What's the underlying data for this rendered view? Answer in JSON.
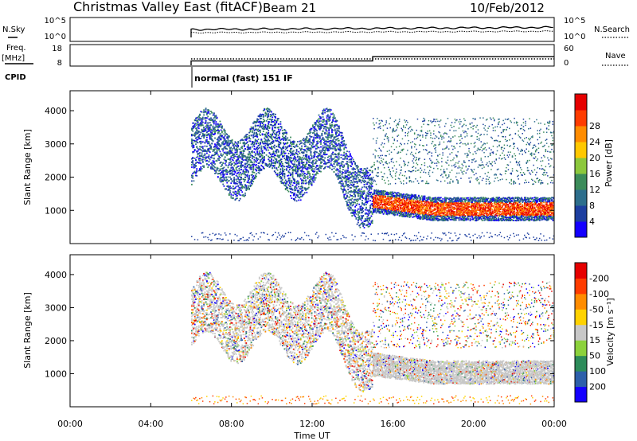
{
  "header": {
    "station": "Christmas Valley East (fitACF)",
    "beam": "Beam 21",
    "date": "10/Feb/2012"
  },
  "strip": {
    "nsky_label": "N.Sky",
    "nsearch_label": "N.Search",
    "nsky_ticks": [
      "10^5",
      "10^0"
    ],
    "nsearch_ticks": [
      "10^5",
      "10^0"
    ],
    "freq_label": "Freq.",
    "freq_unit": "[MHz]",
    "freq_ticks": [
      "18",
      "8"
    ],
    "nave_label": "Nave",
    "nave_ticks": [
      "60",
      "0"
    ],
    "cpid_label": "CPID",
    "cpid_text": "normal (fast) 151 IF",
    "freq_step_time": 15.0,
    "freq_before": 11,
    "freq_after": 14,
    "data_start": 6.0
  },
  "chart_data": [
    {
      "type": "heatmap",
      "name": "power",
      "ylabel": "Slant Range [km]",
      "xlabel": "",
      "xlim": [
        0,
        24
      ],
      "ylim": [
        0,
        4600
      ],
      "yticks": [
        1000,
        2000,
        3000,
        4000
      ],
      "xticks": [
        "00:00",
        "04:00",
        "08:00",
        "12:00",
        "16:00",
        "20:00",
        "00:00"
      ],
      "colorbar": {
        "label": "Power [dB]",
        "ticks": [
          "4",
          "8",
          "12",
          "16",
          "20",
          "24",
          "28"
        ],
        "colors": [
          "#1400ff",
          "#1d3fa0",
          "#2d6e8c",
          "#3c8c5a",
          "#8cc83c",
          "#ffc800",
          "#ff8c00",
          "#ff3c00",
          "#e60000"
        ]
      },
      "features": [
        {
          "label": "sea-scatter band",
          "t_start": 15.0,
          "t_end": 24.0,
          "range_start_km": 1050,
          "range_end_km": 1600,
          "level": "high"
        },
        {
          "label": "ionospheric scatter",
          "t_start": 6.0,
          "t_end": 15.0,
          "range_start_km": 1800,
          "range_end_km": 3600,
          "level": "low"
        }
      ]
    },
    {
      "type": "heatmap",
      "name": "velocity",
      "ylabel": "Slant Range [km]",
      "xlabel": "Time UT",
      "xlim": [
        0,
        24
      ],
      "ylim": [
        0,
        4600
      ],
      "yticks": [
        1000,
        2000,
        3000,
        4000
      ],
      "xticks": [
        "00:00",
        "04:00",
        "08:00",
        "12:00",
        "16:00",
        "20:00",
        "00:00"
      ],
      "colorbar": {
        "label": "Velocity [m s⁻¹]",
        "ticks": [
          "200",
          "100",
          "50",
          "15",
          "-15",
          "-50",
          "-100",
          "-200"
        ],
        "colors": [
          "#1400ff",
          "#2d5faa",
          "#2d8c5a",
          "#8cd23c",
          "#c8c8c8",
          "#ffd200",
          "#ff8c00",
          "#ff3c00",
          "#e60000"
        ]
      }
    }
  ]
}
